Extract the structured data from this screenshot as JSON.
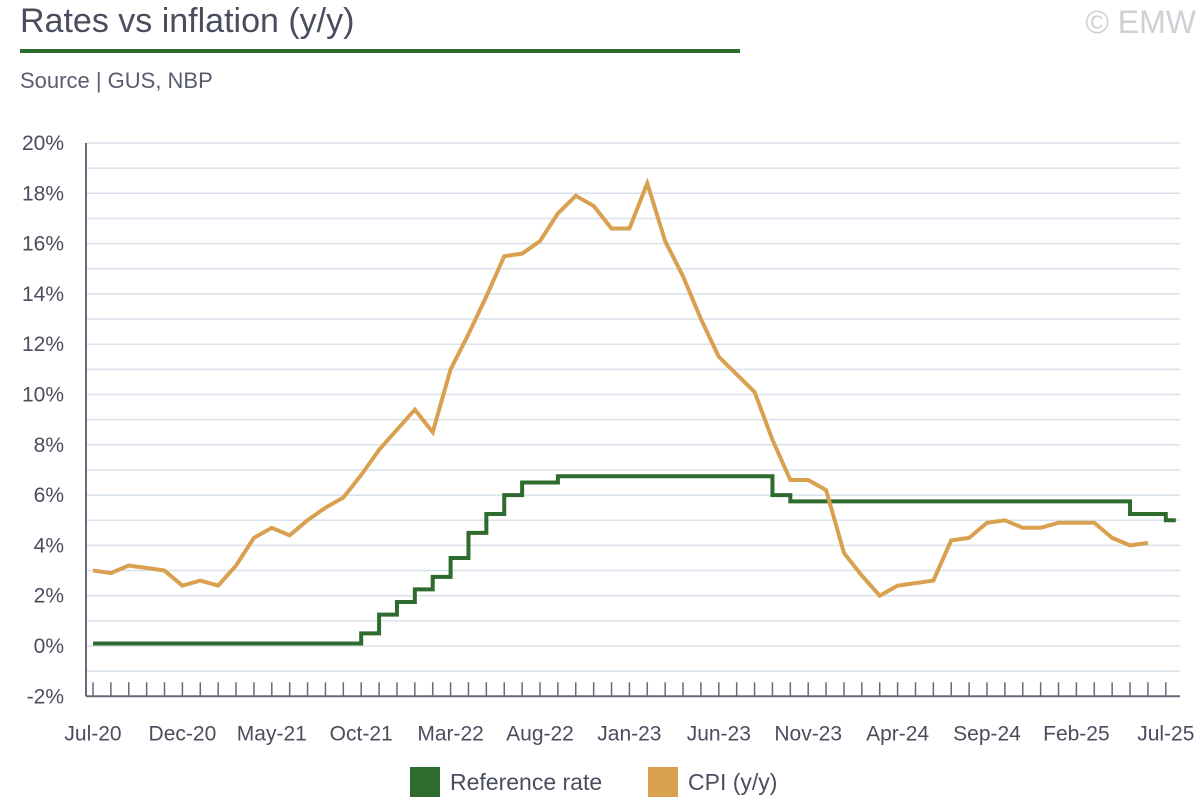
{
  "header": {
    "title": "Rates vs inflation (y/y)",
    "source": "Source | GUS, NBP",
    "watermark": "© EMW"
  },
  "colors": {
    "reference_rate": "#2e6b2e",
    "cpi": "#d9a050",
    "grid": "#d8e2ec",
    "axis": "#666a7a"
  },
  "legend": {
    "items": [
      {
        "label": "Reference rate",
        "color": "#2e6b2e"
      },
      {
        "label": "CPI (y/y)",
        "color": "#d9a050"
      }
    ]
  },
  "chart_data": {
    "type": "line",
    "title": "Rates vs inflation (y/y)",
    "xlabel": "",
    "ylabel": "",
    "ylim": [
      -2,
      20
    ],
    "y_ticks": [
      "-2%",
      "0%",
      "2%",
      "4%",
      "6%",
      "8%",
      "10%",
      "12%",
      "14%",
      "16%",
      "18%",
      "20%"
    ],
    "y_tick_values": [
      -2,
      0,
      2,
      4,
      6,
      8,
      10,
      12,
      14,
      16,
      18,
      20
    ],
    "x_tick_labels": [
      "Jul-20",
      "Dec-20",
      "May-21",
      "Oct-21",
      "Mar-22",
      "Aug-22",
      "Jan-23",
      "Jun-23",
      "Nov-23",
      "Apr-24",
      "Sep-24",
      "Feb-25",
      "Jul-25"
    ],
    "x_tick_months": [
      "2020-07",
      "2020-12",
      "2021-05",
      "2021-10",
      "2022-03",
      "2022-08",
      "2023-01",
      "2023-06",
      "2023-11",
      "2024-04",
      "2024-09",
      "2025-02",
      "2025-07"
    ],
    "grid": true,
    "legend_position": "bottom",
    "series": [
      {
        "name": "Reference rate",
        "step": true,
        "points": [
          [
            "2020-07",
            0.1
          ],
          [
            "2021-09",
            0.1
          ],
          [
            "2021-10",
            0.5
          ],
          [
            "2021-11",
            1.25
          ],
          [
            "2021-12",
            1.75
          ],
          [
            "2022-01",
            2.25
          ],
          [
            "2022-02",
            2.75
          ],
          [
            "2022-03",
            3.5
          ],
          [
            "2022-04",
            4.5
          ],
          [
            "2022-05",
            5.25
          ],
          [
            "2022-06",
            6.0
          ],
          [
            "2022-07",
            6.5
          ],
          [
            "2022-09",
            6.75
          ],
          [
            "2023-08",
            6.75
          ],
          [
            "2023-09",
            6.0
          ],
          [
            "2023-10",
            5.75
          ],
          [
            "2025-04",
            5.75
          ],
          [
            "2025-05",
            5.25
          ],
          [
            "2025-07",
            5.0
          ]
        ]
      },
      {
        "name": "CPI (y/y)",
        "step": false,
        "points": [
          [
            "2020-07",
            3.0
          ],
          [
            "2020-08",
            2.9
          ],
          [
            "2020-09",
            3.2
          ],
          [
            "2020-10",
            3.1
          ],
          [
            "2020-11",
            3.0
          ],
          [
            "2020-12",
            2.4
          ],
          [
            "2021-01",
            2.6
          ],
          [
            "2021-02",
            2.4
          ],
          [
            "2021-03",
            3.2
          ],
          [
            "2021-04",
            4.3
          ],
          [
            "2021-05",
            4.7
          ],
          [
            "2021-06",
            4.4
          ],
          [
            "2021-07",
            5.0
          ],
          [
            "2021-08",
            5.5
          ],
          [
            "2021-09",
            5.9
          ],
          [
            "2021-10",
            6.8
          ],
          [
            "2021-11",
            7.8
          ],
          [
            "2021-12",
            8.6
          ],
          [
            "2022-01",
            9.4
          ],
          [
            "2022-02",
            8.5
          ],
          [
            "2022-03",
            11.0
          ],
          [
            "2022-04",
            12.4
          ],
          [
            "2022-05",
            13.9
          ],
          [
            "2022-06",
            15.5
          ],
          [
            "2022-07",
            15.6
          ],
          [
            "2022-08",
            16.1
          ],
          [
            "2022-09",
            17.2
          ],
          [
            "2022-10",
            17.9
          ],
          [
            "2022-11",
            17.5
          ],
          [
            "2022-12",
            16.6
          ],
          [
            "2023-01",
            16.6
          ],
          [
            "2023-02",
            18.4
          ],
          [
            "2023-03",
            16.1
          ],
          [
            "2023-04",
            14.7
          ],
          [
            "2023-05",
            13.0
          ],
          [
            "2023-06",
            11.5
          ],
          [
            "2023-07",
            10.8
          ],
          [
            "2023-08",
            10.1
          ],
          [
            "2023-09",
            8.2
          ],
          [
            "2023-10",
            6.6
          ],
          [
            "2023-11",
            6.6
          ],
          [
            "2023-12",
            6.2
          ],
          [
            "2024-01",
            3.7
          ],
          [
            "2024-02",
            2.8
          ],
          [
            "2024-03",
            2.0
          ],
          [
            "2024-04",
            2.4
          ],
          [
            "2024-05",
            2.5
          ],
          [
            "2024-06",
            2.6
          ],
          [
            "2024-07",
            4.2
          ],
          [
            "2024-08",
            4.3
          ],
          [
            "2024-09",
            4.9
          ],
          [
            "2024-10",
            5.0
          ],
          [
            "2024-11",
            4.7
          ],
          [
            "2024-12",
            4.7
          ],
          [
            "2025-01",
            4.9
          ],
          [
            "2025-02",
            4.9
          ],
          [
            "2025-03",
            4.9
          ],
          [
            "2025-04",
            4.3
          ],
          [
            "2025-05",
            4.0
          ],
          [
            "2025-06",
            4.1
          ]
        ]
      }
    ]
  }
}
